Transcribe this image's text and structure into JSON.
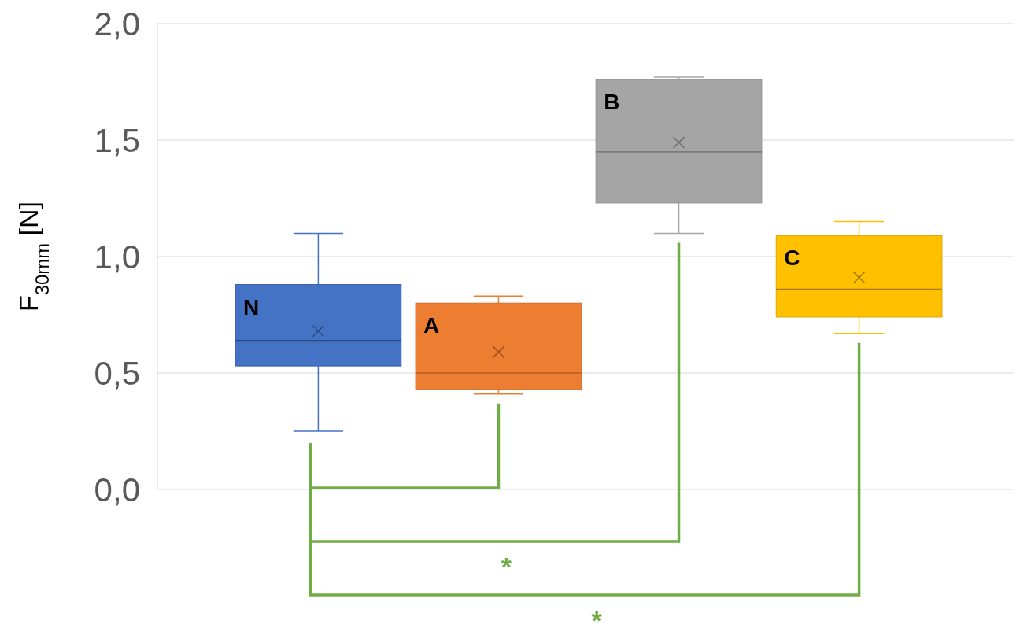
{
  "chart_data": {
    "type": "box",
    "ylabel": "F$_{30mm}$ [N]",
    "categories": [
      null
    ],
    "ylim": [
      0,
      2
    ],
    "yticks": [
      {
        "value": 0,
        "label": "0,0"
      },
      {
        "value": 0.5,
        "label": "0,5"
      },
      {
        "value": 1,
        "label": "1,0"
      },
      {
        "value": 1.5,
        "label": "1,5"
      },
      {
        "value": 2,
        "label": "2,0"
      }
    ],
    "grid": "y",
    "annotations": [
      "*",
      "*"
    ],
    "series": [
      {
        "name": "N",
        "color": "#4472c4",
        "boxes": [
          {
            "low": 0.25,
            "q1": 0.53,
            "median": 0.64,
            "q3": 0.88,
            "high": 1.1,
            "mean": 0.68
          }
        ]
      },
      {
        "name": "A",
        "color": "#ed7d31",
        "boxes": [
          {
            "low": 0.41,
            "q1": 0.43,
            "median": 0.5,
            "q3": 0.8,
            "high": 0.83,
            "mean": 0.59
          }
        ]
      },
      {
        "name": "B",
        "color": "#a5a5a5",
        "boxes": [
          {
            "low": 1.1,
            "q1": 1.23,
            "median": 1.45,
            "q3": 1.76,
            "high": 1.77,
            "mean": 1.49
          }
        ]
      },
      {
        "name": "C",
        "color": "#ffc000",
        "boxes": [
          {
            "low": 0.67,
            "q1": 0.74,
            "median": 0.86,
            "q3": 1.09,
            "high": 1.15,
            "mean": 0.91
          }
        ]
      }
    ]
  }
}
